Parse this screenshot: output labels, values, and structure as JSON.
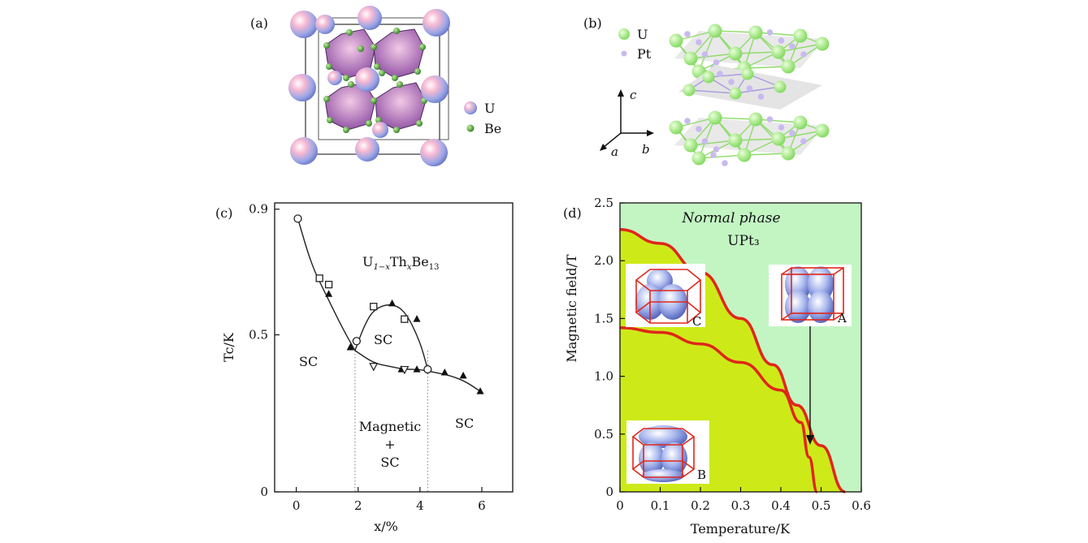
{
  "panels": {
    "a": {
      "label": "(a)",
      "legend": [
        {
          "text": "U",
          "color": "#f2a6c8"
        },
        {
          "text": "Be",
          "color": "#3f9a2f"
        }
      ]
    },
    "b": {
      "label": "(b)",
      "legend": [
        {
          "text": "U",
          "color": "#9be67a"
        },
        {
          "text": "Pt",
          "color": "#c9b9f0"
        }
      ],
      "axes": {
        "c": "c",
        "a": "a",
        "b": "b"
      }
    },
    "c": {
      "label": "(c)",
      "formula": {
        "base1": "U",
        "sub1": "1−x",
        "base2": "Th",
        "sub2": "x",
        "base3": "Be",
        "sub3": "13"
      },
      "annotations": {
        "sc_left": "SC",
        "sc_mid": "SC",
        "sc_right": "SC",
        "mag1": "Magnetic",
        "mag2": "+",
        "mag3": "SC"
      }
    },
    "d": {
      "label": "(d)",
      "phase_title": "Normal phase",
      "compound": "UPt₃",
      "inset_labels": {
        "A": "A",
        "B": "B",
        "C": "C"
      }
    }
  },
  "chart_data": [
    {
      "panel": "c",
      "type": "scatter",
      "xlabel": "x/%",
      "ylabel": "Tc/K",
      "xlim": [
        -0.7,
        7
      ],
      "ylim": [
        0,
        0.92
      ],
      "xticks": [
        0,
        2,
        4,
        6
      ],
      "yticks": [
        {
          "value": 0,
          "label": "0"
        },
        {
          "value": 0.5,
          "label": "0.5"
        },
        {
          "value": 0.9,
          "label": "0.9"
        }
      ],
      "series": [
        {
          "marker": "open-square",
          "x": [
            0.75,
            1.05,
            2.5,
            3.5
          ],
          "y": [
            0.68,
            0.66,
            0.59,
            0.55
          ]
        },
        {
          "marker": "filled-triangle",
          "x": [
            1.05,
            1.75,
            3.1,
            3.9,
            1.75,
            3.4,
            3.9,
            4.8,
            5.4,
            5.95
          ],
          "y": [
            0.63,
            0.46,
            0.6,
            0.55,
            0.46,
            0.39,
            0.39,
            0.38,
            0.37,
            0.32
          ]
        },
        {
          "marker": "open-circle",
          "x": [
            0.05,
            1.95,
            4.25
          ],
          "y": [
            0.87,
            0.48,
            0.39
          ]
        },
        {
          "marker": "open-triangle-down",
          "x": [
            2.5,
            3.5
          ],
          "y": [
            0.4,
            0.39
          ]
        }
      ],
      "curves": [
        {
          "x": [
            0.05,
            0.5,
            1.0,
            1.5,
            1.9
          ],
          "y": [
            0.87,
            0.72,
            0.62,
            0.52,
            0.45
          ]
        },
        {
          "x": [
            1.9,
            2.2,
            2.5,
            3.0,
            3.5,
            4.0,
            4.25
          ],
          "y": [
            0.45,
            0.53,
            0.58,
            0.6,
            0.58,
            0.48,
            0.39
          ]
        },
        {
          "x": [
            1.9,
            2.5,
            3.0,
            3.5,
            4.0,
            4.5,
            5.0,
            5.5,
            5.95
          ],
          "y": [
            0.45,
            0.41,
            0.4,
            0.39,
            0.39,
            0.38,
            0.37,
            0.35,
            0.32
          ]
        }
      ],
      "dotted_lines_x": [
        1.9,
        4.25
      ]
    },
    {
      "panel": "d",
      "type": "line",
      "xlabel": "Temperature/K",
      "ylabel": "Magnetic field/T",
      "xlim": [
        0,
        0.6
      ],
      "ylim": [
        0,
        2.5
      ],
      "xticks": [
        0,
        0.1,
        0.2,
        0.3,
        0.4,
        0.5,
        0.6
      ],
      "yticks": [
        0,
        0.5,
        1.0,
        1.5,
        2.0,
        2.5
      ],
      "colors": {
        "normal_phase": "#c3f5c3",
        "superconducting": "#cdea18",
        "boundary": "#e0261a"
      },
      "series": [
        {
          "x": [
            0,
            0.1,
            0.2,
            0.3,
            0.38,
            0.44,
            0.5,
            0.56
          ],
          "y": [
            2.27,
            2.15,
            1.9,
            1.5,
            1.1,
            0.75,
            0.4,
            0
          ]
        },
        {
          "x": [
            0,
            0.1,
            0.2,
            0.3,
            0.4,
            0.45,
            0.47,
            0.49
          ],
          "y": [
            1.42,
            1.38,
            1.28,
            1.12,
            0.88,
            0.6,
            0.3,
            0
          ]
        }
      ]
    }
  ]
}
